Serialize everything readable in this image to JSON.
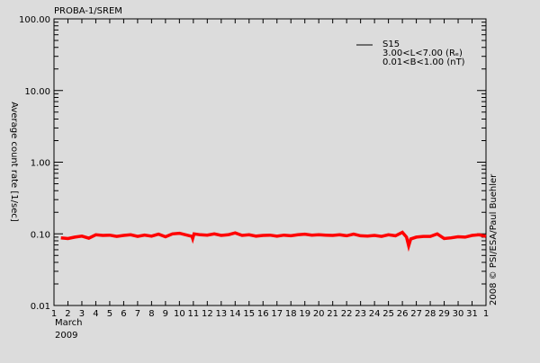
{
  "chart_data": {
    "type": "line",
    "title": "PROBA-1/SREM",
    "ylabel": "Average count rate [1/sec]",
    "xlabel_lines": [
      "March",
      "2009"
    ],
    "x_tick_labels": [
      "1",
      "2",
      "3",
      "4",
      "5",
      "6",
      "7",
      "8",
      "9",
      "10",
      "11",
      "12",
      "13",
      "14",
      "15",
      "16",
      "17",
      "18",
      "19",
      "20",
      "21",
      "22",
      "23",
      "24",
      "25",
      "26",
      "27",
      "28",
      "29",
      "30",
      "31",
      "1"
    ],
    "y_scale": "log",
    "ylim": [
      0.01,
      100
    ],
    "y_tick_labels": [
      "100.00",
      "10.00",
      "1.00",
      "0.10",
      "0.01"
    ],
    "y_tick_values": [
      100,
      10,
      1,
      0.1,
      0.01
    ],
    "xlim_days": [
      1,
      32
    ],
    "legend": {
      "position": "top-right",
      "lines": [
        "S15",
        "3.00<L<7.00 (Rₑ)",
        "0.01<B<1.00 (nT)"
      ]
    },
    "credit": "2008 © PSI/ESA/Paul Buehler",
    "series": [
      {
        "color": "#ff0000",
        "x": [
          1.5,
          2,
          2.5,
          3,
          3.5,
          4,
          4.5,
          5,
          5.5,
          6,
          6.5,
          7,
          7.5,
          8,
          8.5,
          9,
          9.5,
          10,
          10.9,
          10.95,
          11.05,
          11.5,
          12,
          12.5,
          13,
          13.5,
          14,
          14.5,
          15,
          15.5,
          16,
          16.5,
          17,
          17.5,
          18,
          18.5,
          19,
          19.5,
          20,
          20.5,
          21,
          21.5,
          22,
          22.5,
          23,
          23.5,
          24,
          24.5,
          25,
          25.5,
          26,
          26.3,
          26.45,
          26.6,
          27,
          27.5,
          28,
          28.5,
          29,
          29.5,
          30,
          30.5,
          31,
          31.5,
          32
        ],
        "y": [
          0.088,
          0.086,
          0.09,
          0.093,
          0.087,
          0.097,
          0.095,
          0.096,
          0.092,
          0.095,
          0.097,
          0.092,
          0.096,
          0.093,
          0.099,
          0.091,
          0.1,
          0.102,
          0.092,
          0.086,
          0.1,
          0.097,
          0.096,
          0.1,
          0.095,
          0.097,
          0.103,
          0.095,
          0.097,
          0.093,
          0.095,
          0.096,
          0.093,
          0.096,
          0.094,
          0.097,
          0.099,
          0.096,
          0.097,
          0.096,
          0.095,
          0.097,
          0.094,
          0.099,
          0.094,
          0.093,
          0.095,
          0.092,
          0.097,
          0.094,
          0.105,
          0.09,
          0.068,
          0.085,
          0.09,
          0.092,
          0.092,
          0.1,
          0.086,
          0.088,
          0.091,
          0.09,
          0.095,
          0.097,
          0.092
        ]
      }
    ]
  }
}
